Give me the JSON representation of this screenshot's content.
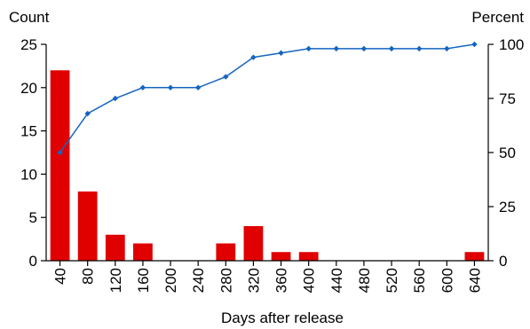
{
  "chart_data": {
    "type": "bar",
    "xlabel": "Days after release",
    "ylabel_left": "Count",
    "ylabel_right": "Percent",
    "categories": [
      "40",
      "80",
      "120",
      "160",
      "200",
      "240",
      "280",
      "320",
      "360",
      "400",
      "440",
      "480",
      "520",
      "560",
      "600",
      "640"
    ],
    "series": [
      {
        "type": "bar",
        "axis": "left",
        "color": "#e00000",
        "values": [
          22,
          8,
          3,
          2,
          0,
          0,
          2,
          4,
          1,
          1,
          0,
          0,
          0,
          0,
          0,
          1
        ]
      },
      {
        "type": "line",
        "axis": "right",
        "color": "#1565c0",
        "marker": "diamond",
        "values": [
          50,
          68,
          75,
          80,
          80,
          80,
          85,
          94,
          96,
          98,
          98,
          98,
          98,
          98,
          98,
          100
        ]
      }
    ],
    "ylim_left": [
      0,
      25
    ],
    "yticks_left": [
      "0",
      "5",
      "10",
      "15",
      "20",
      "25"
    ],
    "ylim_right": [
      0,
      100
    ],
    "yticks_right": [
      "0",
      "25",
      "50",
      "75",
      "100"
    ],
    "grid": false,
    "legend": "none"
  }
}
